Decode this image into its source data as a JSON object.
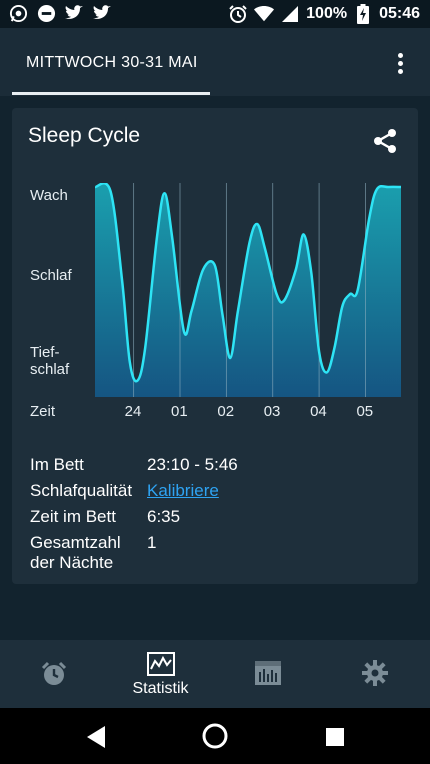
{
  "status_bar": {
    "battery": "100%",
    "time": "05:46",
    "left_icons": [
      "whatsapp-icon",
      "do-not-disturb-icon",
      "twitter-icon",
      "twitter-icon"
    ],
    "right_icons": [
      "alarm-icon",
      "wifi-icon",
      "signal-icon",
      "battery-charging-icon"
    ]
  },
  "header": {
    "tab_label": "MITTWOCH 30-31 MAI",
    "menu_icon": "more-vert-icon"
  },
  "card": {
    "title": "Sleep Cycle",
    "share_icon": "share-icon"
  },
  "chart_data": {
    "type": "area",
    "y_levels": [
      "Wach",
      "Schlaf",
      "Tief-\nschlaf"
    ],
    "xlabel": "Zeit",
    "x_ticks": [
      "24",
      "01",
      "02",
      "03",
      "04",
      "05"
    ],
    "x_range": [
      "23:10",
      "05:46"
    ],
    "y_range": [
      0,
      1
    ],
    "points": [
      {
        "t": "23:10",
        "y": 1.0
      },
      {
        "t": "23:30",
        "y": 0.98
      },
      {
        "t": "23:45",
        "y": 0.55
      },
      {
        "t": "23:55",
        "y": 0.15
      },
      {
        "t": "00:05",
        "y": 0.06
      },
      {
        "t": "00:15",
        "y": 0.22
      },
      {
        "t": "00:30",
        "y": 0.75
      },
      {
        "t": "00:40",
        "y": 0.97
      },
      {
        "t": "00:50",
        "y": 0.75
      },
      {
        "t": "01:05",
        "y": 0.3
      },
      {
        "t": "01:15",
        "y": 0.4
      },
      {
        "t": "01:30",
        "y": 0.6
      },
      {
        "t": "01:45",
        "y": 0.62
      },
      {
        "t": "01:55",
        "y": 0.38
      },
      {
        "t": "02:05",
        "y": 0.17
      },
      {
        "t": "02:15",
        "y": 0.4
      },
      {
        "t": "02:30",
        "y": 0.73
      },
      {
        "t": "02:40",
        "y": 0.82
      },
      {
        "t": "02:50",
        "y": 0.7
      },
      {
        "t": "03:05",
        "y": 0.48
      },
      {
        "t": "03:15",
        "y": 0.45
      },
      {
        "t": "03:30",
        "y": 0.6
      },
      {
        "t": "03:40",
        "y": 0.77
      },
      {
        "t": "03:50",
        "y": 0.58
      },
      {
        "t": "04:00",
        "y": 0.2
      },
      {
        "t": "04:10",
        "y": 0.1
      },
      {
        "t": "04:20",
        "y": 0.22
      },
      {
        "t": "04:30",
        "y": 0.42
      },
      {
        "t": "04:40",
        "y": 0.48
      },
      {
        "t": "04:50",
        "y": 0.5
      },
      {
        "t": "05:05",
        "y": 0.85
      },
      {
        "t": "05:15",
        "y": 0.99
      },
      {
        "t": "05:30",
        "y": 1.0
      },
      {
        "t": "05:46",
        "y": 1.0
      }
    ],
    "colors": {
      "line": "#2ee4f5",
      "fill_top": "#1a8fa6",
      "fill_bottom": "#145a86",
      "gridline": "#8aa3b3"
    }
  },
  "info": {
    "rows": [
      {
        "label": "Im Bett",
        "value": "23:10 - 5:46"
      },
      {
        "label": "Schlafqualität",
        "value": "Kalibriere"
      },
      {
        "label": "Zeit im Bett",
        "value": "6:35"
      },
      {
        "label": "Gesamtzahl\nder Nächte",
        "value": "1"
      }
    ]
  },
  "bottom_nav": {
    "items": [
      {
        "icon": "alarm-clock-icon",
        "label": ""
      },
      {
        "icon": "statistics-chart-icon",
        "label": "Statistik"
      },
      {
        "icon": "sleep-notes-icon",
        "label": ""
      },
      {
        "icon": "settings-gear-icon",
        "label": ""
      }
    ]
  },
  "system_nav": {
    "buttons": [
      "back-icon",
      "home-icon",
      "recents-icon"
    ]
  }
}
